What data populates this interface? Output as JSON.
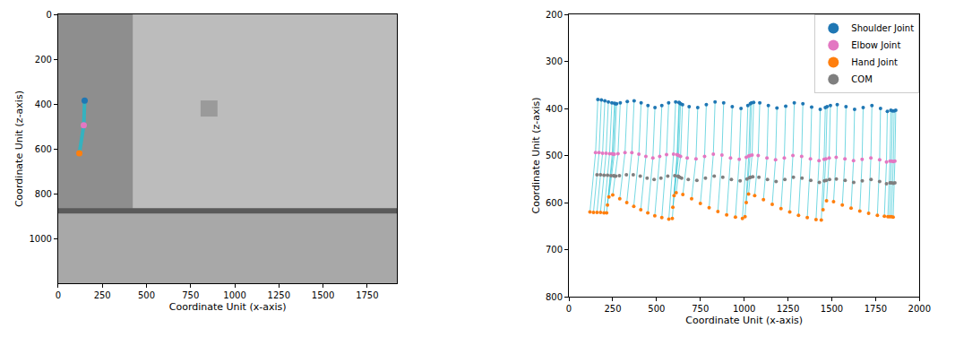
{
  "chart_data": [
    {
      "type": "image",
      "x_label": "Coordinate Unit (x-axis)",
      "y_label": "Coordinate Unit (z-axis)",
      "xlim": [
        0,
        1920
      ],
      "ylim": [
        1200,
        0
      ],
      "xticks": [
        0,
        250,
        500,
        750,
        1000,
        1250,
        1500,
        1750
      ],
      "yticks": [
        0,
        200,
        400,
        600,
        800,
        1000
      ],
      "grid": false,
      "marker": "circle",
      "series": [
        {
          "x": [
            150,
            145,
            120
          ],
          "values": [
            385,
            495,
            620
          ],
          "colors": [
            "#1f77b4",
            "#e377c2",
            "#ff7f0e"
          ]
        }
      ]
    },
    {
      "type": "scatter",
      "x_label": "Coordinate Unit (x-axis)",
      "y_label": "Coordinate Unit (z-axis)",
      "xlim": [
        0,
        2000
      ],
      "ylim": [
        800,
        200
      ],
      "xticks": [
        0,
        250,
        500,
        750,
        1000,
        1250,
        1500,
        1750,
        2000
      ],
      "yticks": [
        200,
        300,
        400,
        500,
        600,
        700,
        800
      ],
      "grid": false,
      "legend": "upper right",
      "marker": "circle",
      "series": [
        {
          "name": "Shoulder Joint",
          "color": "#1f77b4",
          "x": [
            165,
            185,
            205,
            225,
            245,
            260,
            265,
            272,
            293,
            333,
            372,
            412,
            451,
            491,
            530,
            569,
            609,
            628,
            631,
            637,
            648,
            686,
            735,
            784,
            834,
            883,
            932,
            982,
            1021,
            1035,
            1042,
            1054,
            1089,
            1138,
            1187,
            1237,
            1286,
            1335,
            1385,
            1434,
            1463,
            1473,
            1492,
            1531,
            1581,
            1630,
            1679,
            1729,
            1778,
            1817,
            1837,
            1846,
            1856,
            1865
          ],
          "values": [
            381,
            382,
            384,
            386,
            388,
            389,
            390,
            390,
            388,
            385,
            384,
            388,
            394,
            398,
            394,
            388,
            386,
            387,
            388,
            390,
            392,
            396,
            398,
            392,
            386,
            388,
            396,
            400,
            394,
            390,
            388,
            387,
            388,
            394,
            399,
            395,
            388,
            390,
            397,
            402,
            398,
            396,
            394,
            392,
            396,
            402,
            398,
            394,
            400,
            406,
            404,
            405,
            405,
            404
          ]
        },
        {
          "name": "Elbow Joint",
          "color": "#e377c2",
          "x": [
            152,
            172,
            192,
            212,
            232,
            247,
            252,
            259,
            280,
            320,
            359,
            399,
            439,
            479,
            518,
            557,
            597,
            617,
            620,
            626,
            637,
            675,
            725,
            774,
            824,
            873,
            922,
            972,
            1012,
            1026,
            1033,
            1045,
            1080,
            1130,
            1179,
            1229,
            1278,
            1328,
            1378,
            1427,
            1456,
            1466,
            1485,
            1525,
            1575,
            1624,
            1673,
            1723,
            1773,
            1812,
            1832,
            1841,
            1851,
            1860
          ],
          "values": [
            494,
            494,
            495,
            495,
            496,
            496,
            497,
            497,
            496,
            494,
            494,
            497,
            502,
            505,
            502,
            498,
            497,
            498,
            499,
            500,
            502,
            505,
            507,
            502,
            497,
            499,
            505,
            508,
            504,
            501,
            500,
            499,
            500,
            505,
            509,
            505,
            500,
            502,
            507,
            511,
            508,
            507,
            505,
            504,
            507,
            511,
            508,
            505,
            509,
            514,
            512,
            512,
            513,
            512
          ]
        },
        {
          "name": "Hand Joint",
          "color": "#ff7f0e",
          "x": [
            120,
            140,
            160,
            180,
            200,
            215,
            220,
            228,
            250,
            290,
            330,
            370,
            410,
            450,
            490,
            530,
            570,
            590,
            593,
            600,
            612,
            650,
            700,
            750,
            800,
            850,
            900,
            950,
            990,
            1005,
            1012,
            1025,
            1060,
            1110,
            1160,
            1210,
            1260,
            1310,
            1360,
            1410,
            1440,
            1450,
            1470,
            1510,
            1560,
            1610,
            1660,
            1710,
            1760,
            1800,
            1820,
            1830,
            1840,
            1850
          ],
          "values": [
            620,
            621,
            621,
            621,
            622,
            622,
            605,
            588,
            584,
            592,
            600,
            608,
            615,
            622,
            628,
            632,
            635,
            634,
            610,
            585,
            579,
            583,
            592,
            602,
            611,
            619,
            626,
            631,
            634,
            630,
            600,
            582,
            585,
            594,
            604,
            613,
            620,
            627,
            632,
            636,
            637,
            615,
            596,
            598,
            605,
            612,
            618,
            623,
            627,
            629,
            630,
            630,
            630,
            631
          ]
        },
        {
          "name": "COM",
          "color": "#7f7f7f",
          "x": [
            160,
            180,
            200,
            220,
            240,
            255,
            260,
            267,
            288,
            328,
            367,
            407,
            446,
            486,
            525,
            564,
            604,
            623,
            626,
            632,
            643,
            681,
            730,
            779,
            829,
            878,
            927,
            977,
            1016,
            1030,
            1037,
            1049,
            1084,
            1133,
            1182,
            1232,
            1281,
            1330,
            1380,
            1429,
            1458,
            1468,
            1487,
            1526,
            1576,
            1625,
            1674,
            1724,
            1773,
            1812,
            1832,
            1841,
            1851,
            1860
          ],
          "values": [
            541,
            541,
            542,
            542,
            543,
            543,
            544,
            544,
            543,
            541,
            541,
            544,
            548,
            551,
            548,
            544,
            543,
            544,
            545,
            546,
            548,
            551,
            553,
            548,
            544,
            546,
            551,
            554,
            550,
            547,
            546,
            545,
            546,
            551,
            555,
            551,
            546,
            548,
            553,
            557,
            554,
            553,
            551,
            550,
            553,
            557,
            554,
            551,
            555,
            560,
            558,
            558,
            559,
            558
          ]
        }
      ]
    }
  ]
}
